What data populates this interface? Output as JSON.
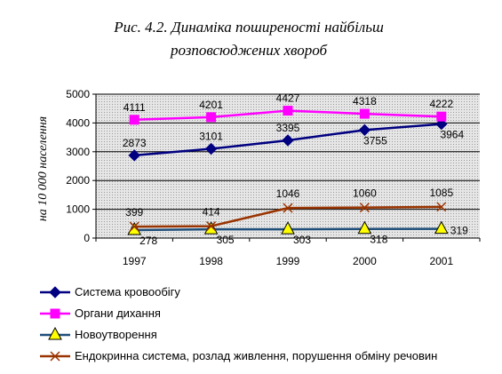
{
  "chart_data": {
    "type": "line",
    "title_line1": "Рис.  4.2.   Динаміка поширеності найбільш",
    "title_line2": "розповсюджених  хвороб",
    "ylabel": "на 10 000 населення",
    "xlabel": "",
    "categories": [
      "1997",
      "1998",
      "1999",
      "2000",
      "2001"
    ],
    "ylim": [
      0,
      5000
    ],
    "yticks": [
      "0",
      "1000",
      "2000",
      "3000",
      "4000",
      "5000"
    ],
    "grid": "horizontal",
    "legend_position": "bottom",
    "series": [
      {
        "name": "Система кровообігу",
        "values": [
          2873,
          3101,
          3395,
          3755,
          3964
        ],
        "labels": [
          "2873",
          "3101",
          "3395",
          "3755",
          "3964"
        ],
        "color": "#000080",
        "marker": "diamond",
        "marker_color": "#000080"
      },
      {
        "name": "Органи дихання",
        "values": [
          4111,
          4201,
          4427,
          4318,
          4222
        ],
        "labels": [
          "4111",
          "4201",
          "4427",
          "4318",
          "4222"
        ],
        "color": "#ff00ff",
        "marker": "square",
        "marker_color": "#ff00ff"
      },
      {
        "name": "Новоутворення",
        "values": [
          278,
          305,
          303,
          318,
          319
        ],
        "labels": [
          "278",
          "305",
          "303",
          "318",
          "319"
        ],
        "color": "#1f4e79",
        "marker": "triangle",
        "marker_color": "#ffff00"
      },
      {
        "name": "Ендокринна система, розлад живлення, порушення обміну речовин",
        "values": [
          399,
          414,
          1046,
          1060,
          1085
        ],
        "labels": [
          "399",
          "414",
          "1046",
          "1060",
          "1085"
        ],
        "color": "#993300",
        "marker": "x",
        "marker_color": "#993300"
      }
    ]
  },
  "colors": {
    "plot_background": "#c0c0c0",
    "gridline": "#000000"
  }
}
